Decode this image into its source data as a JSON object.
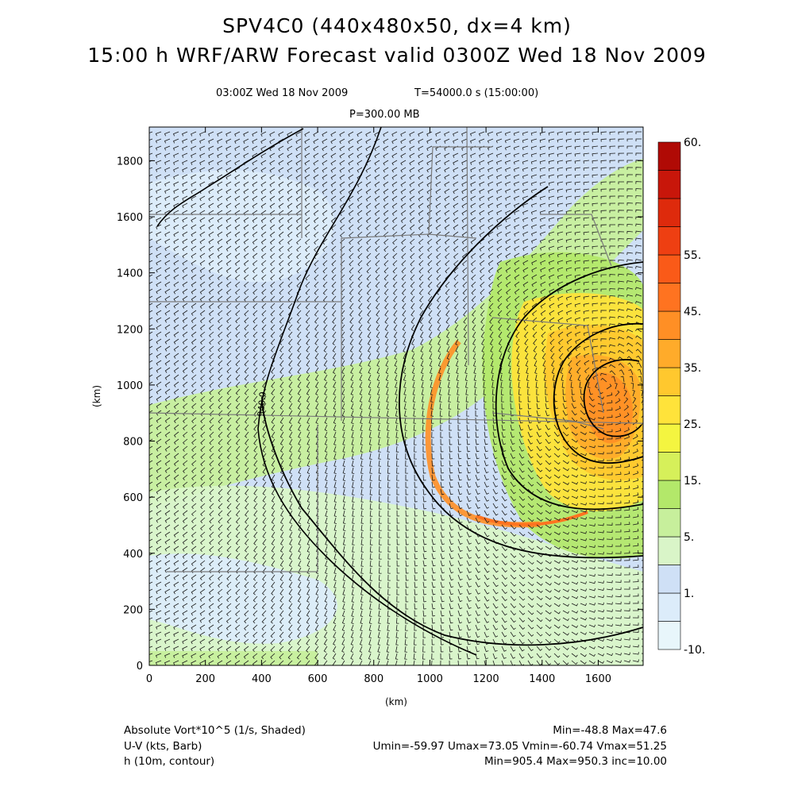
{
  "header": {
    "title_line1": "SPV4C0 (440x480x50, dx=4 km)",
    "title_line2": "15:00 h WRF/ARW Forecast valid 0300Z Wed 18 Nov 2009",
    "valid_time": "03:00Z Wed 18 Nov 2009",
    "sim_time": "T=54000.0 s (15:00:00)",
    "pressure_level": "P=300.00 MB"
  },
  "chart_data": {
    "type": "heatmap",
    "xlabel": "(km)",
    "ylabel": "(km)",
    "xlim": [
      0,
      1760
    ],
    "ylim": [
      0,
      1920
    ],
    "x_ticks": [
      0,
      200,
      400,
      600,
      800,
      1000,
      1200,
      1400,
      1600
    ],
    "y_ticks": [
      0,
      200,
      400,
      600,
      800,
      1000,
      1200,
      1400,
      1600,
      1800
    ],
    "colorbar": {
      "levels": [
        -10,
        1,
        5,
        15,
        25,
        35,
        45,
        55,
        60
      ],
      "labels": [
        "-10.",
        "1.",
        "5.",
        "15.",
        "25.",
        "35.",
        "45.",
        "55.",
        "60."
      ],
      "colors": [
        "#e8f6fb",
        "#dcecfa",
        "#cfe0f6",
        "#d9f5c8",
        "#c7ef9c",
        "#b3e86a",
        "#d6f05a",
        "#f4f540",
        "#ffe33a",
        "#ffc82e",
        "#ffab2a",
        "#ff8f25",
        "#ff7320",
        "#fa5a18",
        "#ee3f12",
        "#de2a0c",
        "#c8160a",
        "#b00a05"
      ]
    },
    "cyclone_center_km": [
      1620,
      1000
    ],
    "contour_label": "940.0",
    "fields": {
      "shaded": "Absolute Vort*10^5 (1/s, Shaded)",
      "barbs": "U-V (kts, Barb)",
      "contour": "h (10m, contour)"
    },
    "stats": {
      "vort": "Min=-48.8 Max=47.6",
      "wind": "Umin=-59.97 Umax=73.05 Vmin=-60.74 Vmax=51.25",
      "height": "Min=905.4 Max=950.3 inc=10.00"
    }
  }
}
